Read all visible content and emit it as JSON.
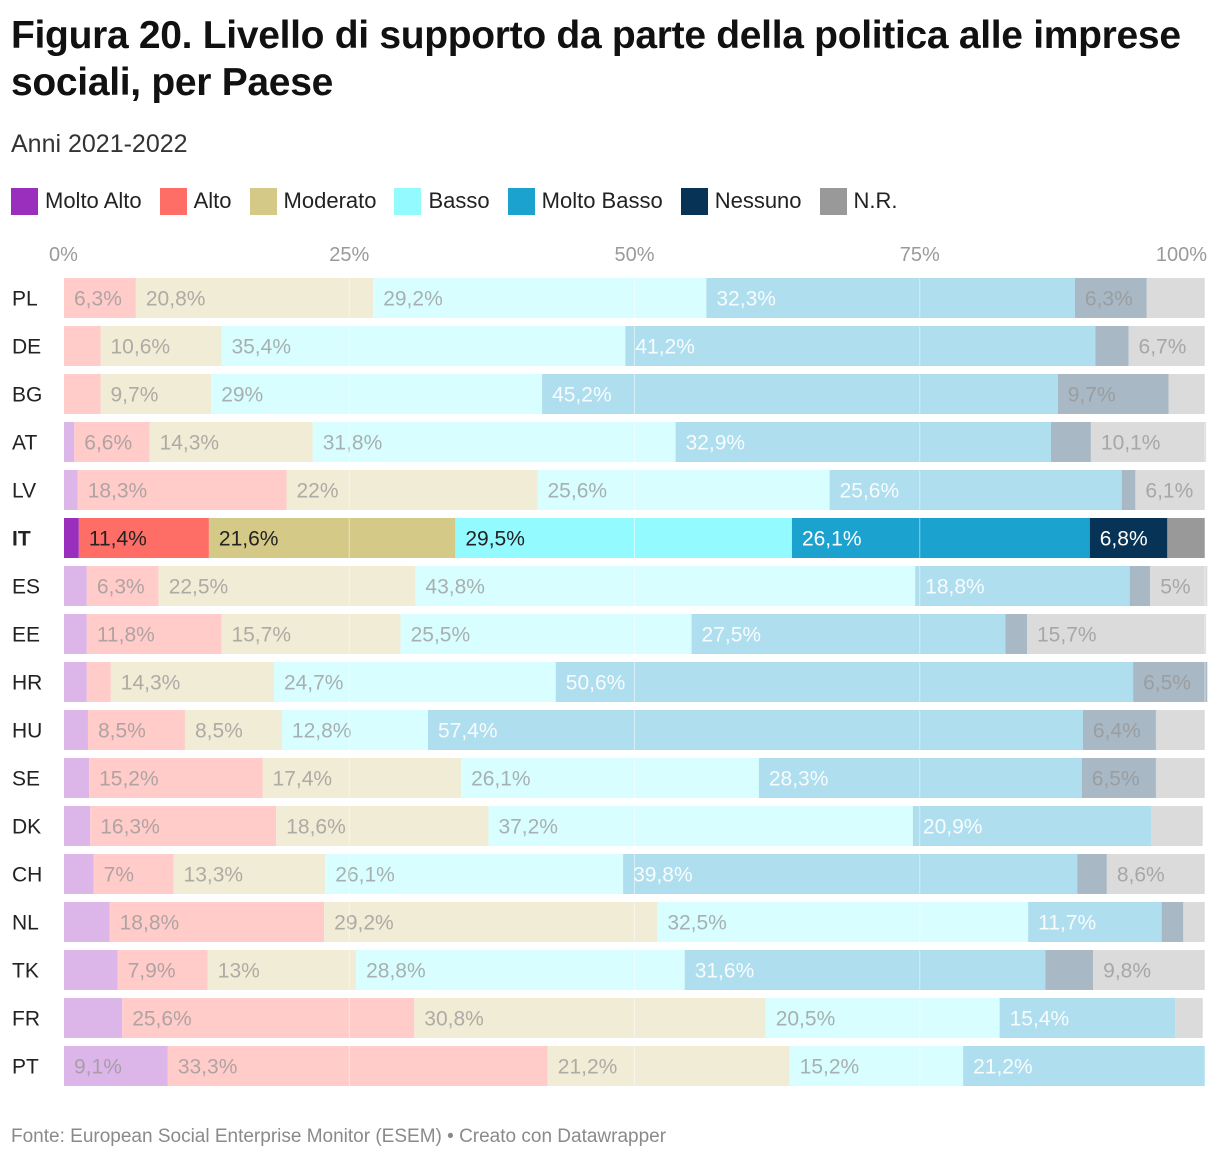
{
  "title": "Figura 20. Livello di supporto da parte della politica alle imprese sociali, per Paese",
  "subtitle": "Anni 2021-2022",
  "source": "Fonte: European Social Enterprise Monitor (ESEM) • Creato con Datawrapper",
  "legend": [
    {
      "label": "Molto Alto",
      "color": "#9a2fbd"
    },
    {
      "label": "Alto",
      "color": "#ff6e66"
    },
    {
      "label": "Moderato",
      "color": "#d4c987"
    },
    {
      "label": "Basso",
      "color": "#93fbff"
    },
    {
      "label": "Molto Basso",
      "color": "#1ba2cf"
    },
    {
      "label": "Nessuno",
      "color": "#073356"
    },
    {
      "label": "N.R.",
      "color": "#999999"
    }
  ],
  "chart_data": {
    "type": "bar",
    "orientation": "horizontal",
    "stacked": true,
    "highlight": "IT",
    "xlim": [
      0,
      100
    ],
    "xticks": [
      "0%",
      "25%",
      "50%",
      "75%",
      "100%"
    ],
    "categories": [
      "PL",
      "DE",
      "BG",
      "AT",
      "LV",
      "IT",
      "ES",
      "EE",
      "HR",
      "HU",
      "SE",
      "DK",
      "CH",
      "NL",
      "TK",
      "FR",
      "PT"
    ],
    "series": [
      {
        "name": "Molto Alto",
        "values": [
          0,
          0,
          0,
          0.9,
          1.2,
          1.3,
          2.0,
          2.0,
          2.0,
          2.1,
          2.2,
          2.3,
          2.6,
          4.0,
          4.7,
          5.1,
          9.1
        ]
      },
      {
        "name": "Alto",
        "values": [
          6.3,
          3.2,
          3.2,
          6.6,
          18.3,
          11.4,
          6.3,
          11.8,
          2.1,
          8.5,
          15.2,
          16.3,
          7.0,
          18.8,
          7.9,
          25.6,
          33.3
        ]
      },
      {
        "name": "Moderato",
        "values": [
          20.8,
          10.6,
          9.7,
          14.3,
          22.0,
          21.6,
          22.5,
          15.7,
          14.3,
          8.5,
          17.4,
          18.6,
          13.3,
          29.2,
          13.0,
          30.8,
          21.2
        ]
      },
      {
        "name": "Basso",
        "values": [
          29.2,
          35.4,
          29.0,
          31.8,
          25.6,
          29.5,
          43.8,
          25.5,
          24.7,
          12.8,
          26.1,
          37.2,
          26.1,
          32.5,
          28.8,
          20.5,
          15.2
        ]
      },
      {
        "name": "Molto Basso",
        "values": [
          32.3,
          41.2,
          45.2,
          32.9,
          25.6,
          26.1,
          18.8,
          27.5,
          50.6,
          57.4,
          28.3,
          20.9,
          39.8,
          11.7,
          31.6,
          15.4,
          21.2
        ]
      },
      {
        "name": "Nessuno",
        "values": [
          6.3,
          2.9,
          9.7,
          3.5,
          1.2,
          6.8,
          1.8,
          1.9,
          6.5,
          6.4,
          6.5,
          0,
          2.6,
          1.9,
          4.2,
          0,
          0
        ]
      },
      {
        "name": "N.R.",
        "values": [
          5.1,
          6.7,
          3.2,
          10.1,
          6.1,
          3.3,
          5.0,
          15.7,
          0,
          4.3,
          4.3,
          4.5,
          8.6,
          1.9,
          9.8,
          2.4,
          0
        ]
      }
    ],
    "labels": [
      [
        "",
        "6,3%",
        "20,8%",
        "29,2%",
        "32,3%",
        "6,3%",
        ""
      ],
      [
        "",
        "",
        "10,6%",
        "35,4%",
        "41,2%",
        "",
        "6,7%"
      ],
      [
        "",
        "",
        "9,7%",
        "29%",
        "45,2%",
        "9,7%",
        ""
      ],
      [
        "",
        "6,6%",
        "14,3%",
        "31,8%",
        "32,9%",
        "",
        "10,1%"
      ],
      [
        "",
        "18,3%",
        "22%",
        "25,6%",
        "25,6%",
        "",
        "6,1%"
      ],
      [
        "",
        "11,4%",
        "21,6%",
        "29,5%",
        "26,1%",
        "6,8%",
        ""
      ],
      [
        "",
        "6,3%",
        "22,5%",
        "43,8%",
        "18,8%",
        "",
        "5%"
      ],
      [
        "",
        "11,8%",
        "15,7%",
        "25,5%",
        "27,5%",
        "",
        "15,7%"
      ],
      [
        "",
        "",
        "14,3%",
        "24,7%",
        "50,6%",
        "6,5%",
        ""
      ],
      [
        "",
        "8,5%",
        "8,5%",
        "12,8%",
        "57,4%",
        "6,4%",
        ""
      ],
      [
        "",
        "15,2%",
        "17,4%",
        "26,1%",
        "28,3%",
        "6,5%",
        ""
      ],
      [
        "",
        "16,3%",
        "18,6%",
        "37,2%",
        "20,9%",
        "",
        ""
      ],
      [
        "",
        "7%",
        "13,3%",
        "26,1%",
        "39,8%",
        "",
        "8,6%"
      ],
      [
        "",
        "18,8%",
        "29,2%",
        "32,5%",
        "11,7%",
        "",
        ""
      ],
      [
        "",
        "7,9%",
        "13%",
        "28,8%",
        "31,6%",
        "",
        "9,8%"
      ],
      [
        "",
        "25,6%",
        "30,8%",
        "20,5%",
        "15,4%",
        "",
        ""
      ],
      [
        "9,1%",
        "33,3%",
        "21,2%",
        "15,2%",
        "21,2%",
        "",
        ""
      ]
    ]
  }
}
